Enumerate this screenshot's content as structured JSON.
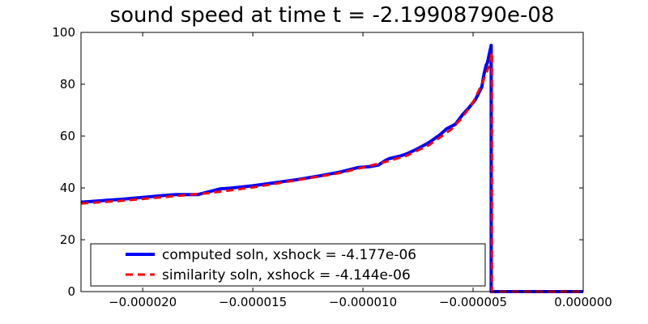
{
  "chart_data": {
    "type": "line",
    "title": "sound speed at time t = -2.19908790e-08",
    "xlabel": "",
    "ylabel": "",
    "xlim": [
      -2.28e-05,
      0.0
    ],
    "ylim": [
      0,
      100
    ],
    "x_ticks": [
      -2e-05,
      -1.5e-05,
      -1e-05,
      -5e-06,
      0.0
    ],
    "x_tick_labels": [
      "−0.000020",
      "−0.000015",
      "−0.000010",
      "−0.000005",
      "0.000000"
    ],
    "y_ticks": [
      0,
      20,
      40,
      60,
      80,
      100
    ],
    "y_tick_labels": [
      "0",
      "20",
      "40",
      "60",
      "80",
      "100"
    ],
    "grid": false,
    "legend_position": "lower-left",
    "series": [
      {
        "name": "computed soln, xshock = -4.177e-06",
        "color": "#0000ff",
        "style": "solid",
        "x": [
          -2.28e-05,
          -2.1e-05,
          -2e-05,
          -1.9e-05,
          -1.85e-05,
          -1.8e-05,
          -1.75e-05,
          -1.7e-05,
          -1.65e-05,
          -1.6e-05,
          -1.5e-05,
          -1.4e-05,
          -1.3e-05,
          -1.2e-05,
          -1.1e-05,
          -1.02e-05,
          -9.7e-06,
          -9.3e-06,
          -9e-06,
          -8.8e-06,
          -8.3e-06,
          -8e-06,
          -7.5e-06,
          -7e-06,
          -6.5e-06,
          -6.2e-06,
          -5.8e-06,
          -5.5e-06,
          -5.2e-06,
          -4.9e-06,
          -4.6e-06,
          -4.5e-06,
          -4.4e-06,
          -4.35e-06,
          -4.177e-06,
          -4.177e-06,
          -4.1e-06,
          0.0
        ],
        "y": [
          34.5,
          35.6,
          36.3,
          37.1,
          37.4,
          37.4,
          37.4,
          38.5,
          39.6,
          39.9,
          40.8,
          42.0,
          43.2,
          44.6,
          46.2,
          47.9,
          48.2,
          48.8,
          50.5,
          51.3,
          52.3,
          53.2,
          55.2,
          57.5,
          60.5,
          62.8,
          64.6,
          68.0,
          70.8,
          74.0,
          79.0,
          84.0,
          87.6,
          88.2,
          95.0,
          0.0,
          0.0,
          0.0
        ]
      },
      {
        "name": "similarity soln,  xshock = -4.144e-06",
        "color": "#ff0000",
        "style": "dashed",
        "x": [
          -2.28e-05,
          -2.1e-05,
          -1.9e-05,
          -1.7e-05,
          -1.5e-05,
          -1.3e-05,
          -1.1e-05,
          -9e-06,
          -8e-06,
          -7e-06,
          -6e-06,
          -5.5e-06,
          -5e-06,
          -4.6e-06,
          -4.3e-06,
          -4.144e-06,
          -4.144e-06,
          0.0
        ],
        "y": [
          34.0,
          35.0,
          36.5,
          38.0,
          40.2,
          43.0,
          45.8,
          50.0,
          52.5,
          56.5,
          62.5,
          67.0,
          73.0,
          80.0,
          86.5,
          92.3,
          0.0,
          0.0
        ]
      }
    ]
  }
}
